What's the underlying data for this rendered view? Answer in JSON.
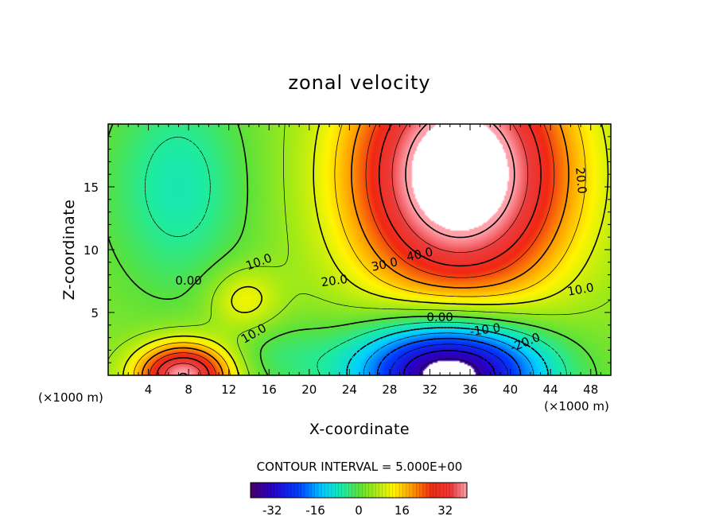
{
  "chart_data": {
    "type": "heatmap",
    "title": "zonal velocity",
    "xlabel": "X-coordinate",
    "ylabel": "Z-coordinate",
    "x_unit": "(×1000 m)",
    "y_unit": "(×1000 m)",
    "xlim": [
      0,
      50
    ],
    "ylim": [
      0,
      20
    ],
    "x_ticks": [
      "4",
      "8",
      "12",
      "16",
      "20",
      "24",
      "28",
      "32",
      "36",
      "40",
      "44",
      "48"
    ],
    "y_ticks": [
      "5",
      "10",
      "15"
    ],
    "contour_interval_text": "CONTOUR INTERVAL = 5.000E+00",
    "colorbar": {
      "min": -40,
      "max": 40,
      "tick_labels": [
        "-32",
        "-16",
        "0",
        "16",
        "32"
      ]
    },
    "contour_labels": [
      "0.00",
      "10.0",
      "10.0",
      "20.0",
      "30.0",
      "40.0",
      "20.0",
      "10.0",
      "0.00",
      "-10.0",
      "-20.0"
    ],
    "field_description": {
      "positive_jet_max": 45,
      "negative_jet_min": -40,
      "surface_jet_max": 35
    }
  }
}
